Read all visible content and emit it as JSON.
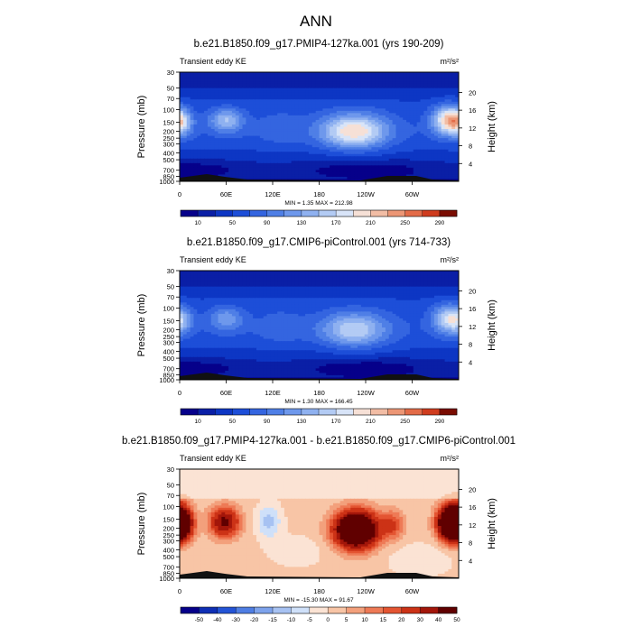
{
  "page_title": "ANN",
  "chart_data": [
    {
      "type": "heatmap",
      "title": "b.e21.B1850.f09_g17.PMIP4-127ka.001 (yrs 190-209)",
      "left_label": "Transient eddy KE",
      "units_label": "m²/s²",
      "ylabel": "Pressure (mb)",
      "ylabel_right": "Height (km)",
      "x_ticks": [
        "0",
        "60E",
        "120E",
        "180",
        "120W",
        "60W"
      ],
      "y_ticks": [
        "30",
        "50",
        "70",
        "100",
        "150",
        "200",
        "250",
        "300",
        "400",
        "500",
        "700",
        "850",
        "1000"
      ],
      "y_ticks_right": [
        "20",
        "16",
        "12",
        "8",
        "4"
      ],
      "stats": "MIN =   1.35  MAX = 212.98",
      "colorbar_labels": [
        "10",
        "50",
        "90",
        "130",
        "170",
        "210",
        "250",
        "290"
      ],
      "levels": [
        10,
        30,
        50,
        70,
        90,
        110,
        130,
        150,
        170,
        190,
        210,
        230,
        250,
        270,
        290
      ],
      "min": 1.35,
      "max": 212.98,
      "field": "pmip",
      "palette": "sequential"
    },
    {
      "type": "heatmap",
      "title": "b.e21.B1850.f09_g17.CMIP6-piControl.001 (yrs 714-733)",
      "left_label": "Transient eddy KE",
      "units_label": "m²/s²",
      "ylabel": "Pressure (mb)",
      "ylabel_right": "Height (km)",
      "x_ticks": [
        "0",
        "60E",
        "120E",
        "180",
        "120W",
        "60W"
      ],
      "y_ticks": [
        "30",
        "50",
        "70",
        "100",
        "150",
        "200",
        "250",
        "300",
        "400",
        "500",
        "700",
        "850",
        "1000"
      ],
      "y_ticks_right": [
        "20",
        "16",
        "12",
        "8",
        "4"
      ],
      "stats": "MIN =   1.30  MAX = 166.45",
      "colorbar_labels": [
        "10",
        "50",
        "90",
        "130",
        "170",
        "210",
        "250",
        "290"
      ],
      "levels": [
        10,
        30,
        50,
        70,
        90,
        110,
        130,
        150,
        170,
        190,
        210,
        230,
        250,
        270,
        290
      ],
      "min": 1.3,
      "max": 166.45,
      "field": "ctrl",
      "palette": "sequential"
    },
    {
      "type": "heatmap",
      "title": "b.e21.B1850.f09_g17.PMIP4-127ka.001 - b.e21.B1850.f09_g17.CMIP6-piControl.001",
      "left_label": "Transient eddy KE",
      "units_label": "m²/s²",
      "ylabel": "Pressure (mb)",
      "ylabel_right": "Height (km)",
      "x_ticks": [
        "0",
        "60E",
        "120E",
        "180",
        "120W",
        "60W"
      ],
      "y_ticks": [
        "30",
        "50",
        "70",
        "100",
        "150",
        "200",
        "250",
        "300",
        "400",
        "500",
        "700",
        "850",
        "1000"
      ],
      "y_ticks_right": [
        "20",
        "16",
        "12",
        "8",
        "4"
      ],
      "stats": "MIN = -15.30  MAX =  91.67",
      "colorbar_labels": [
        "-50",
        "-40",
        "-30",
        "-20",
        "-15",
        "-10",
        "-5",
        "0",
        "5",
        "10",
        "15",
        "20",
        "30",
        "40",
        "50"
      ],
      "levels": [
        -50,
        -40,
        -30,
        -20,
        -15,
        -10,
        -5,
        0,
        5,
        10,
        15,
        20,
        30,
        40,
        50
      ],
      "min": -15.3,
      "max": 91.67,
      "field": "diff",
      "palette": "diverging"
    }
  ]
}
